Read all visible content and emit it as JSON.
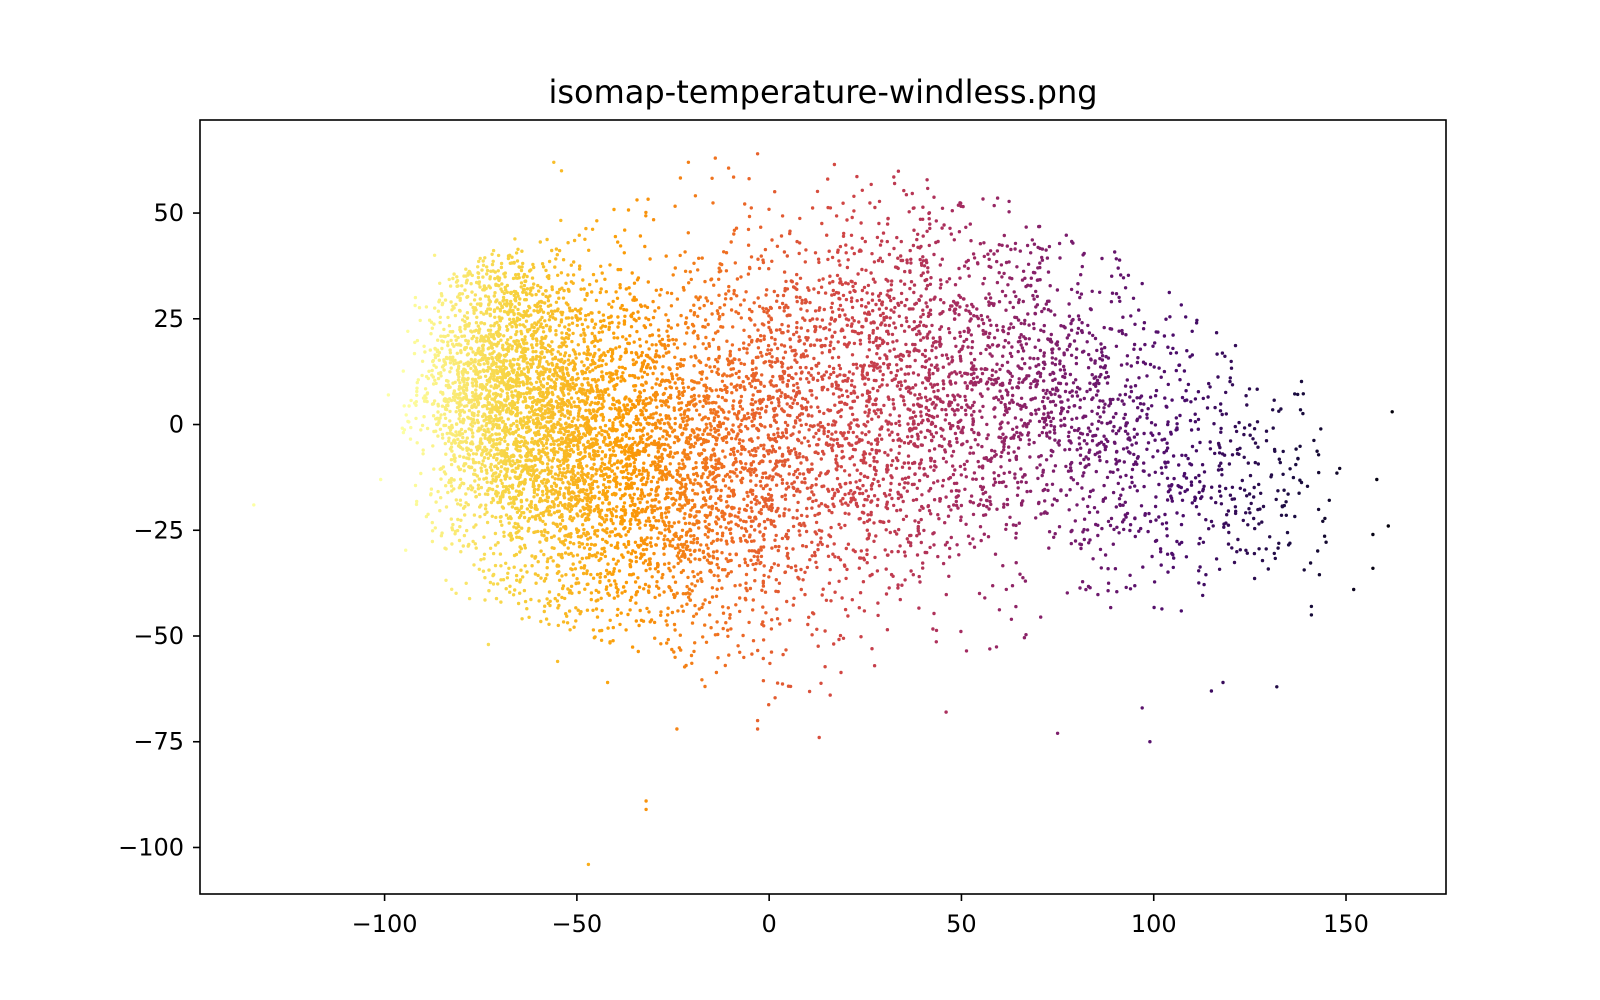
{
  "chart_data": {
    "type": "scatter",
    "title": "isomap-temperature-windless.png",
    "xlabel": "",
    "ylabel": "",
    "xlim": [
      -148,
      176
    ],
    "ylim": [
      -111,
      72
    ],
    "x_ticks": [
      {
        "value": -100,
        "label": "−100"
      },
      {
        "value": -50,
        "label": "−50"
      },
      {
        "value": 0,
        "label": "0"
      },
      {
        "value": 50,
        "label": "50"
      },
      {
        "value": 100,
        "label": "100"
      },
      {
        "value": 150,
        "label": "150"
      }
    ],
    "y_ticks": [
      {
        "value": 50,
        "label": "50"
      },
      {
        "value": 25,
        "label": "25"
      },
      {
        "value": 0,
        "label": "0"
      },
      {
        "value": -25,
        "label": "−25"
      },
      {
        "value": -50,
        "label": "−50"
      },
      {
        "value": -75,
        "label": "−75"
      },
      {
        "value": -100,
        "label": "−100"
      }
    ],
    "grid": false,
    "legend": "none",
    "colormap": "inferno",
    "color_by": "x",
    "colormap_stops": [
      "#000004",
      "#1b0c41",
      "#4a0c6b",
      "#781c6d",
      "#a52c60",
      "#cf4446",
      "#ed6925",
      "#fb9b06",
      "#f7d13d",
      "#fcffa4"
    ],
    "point_count": 9000,
    "outliers": [
      {
        "x": -134,
        "y": -19
      },
      {
        "x": -101,
        "y": -13
      },
      {
        "x": -99,
        "y": 7
      },
      {
        "x": -92,
        "y": 30
      },
      {
        "x": -87,
        "y": 40
      },
      {
        "x": -56,
        "y": 62
      },
      {
        "x": -54,
        "y": 60
      },
      {
        "x": -73,
        "y": -52
      },
      {
        "x": -55,
        "y": -56
      },
      {
        "x": -42,
        "y": -61
      },
      {
        "x": -32,
        "y": -89
      },
      {
        "x": -32,
        "y": -91
      },
      {
        "x": -47,
        "y": -104
      },
      {
        "x": -24,
        "y": -72
      },
      {
        "x": -3,
        "y": -70
      },
      {
        "x": -3,
        "y": -72
      },
      {
        "x": 13,
        "y": -74
      },
      {
        "x": 46,
        "y": -68
      },
      {
        "x": 75,
        "y": -73
      },
      {
        "x": 99,
        "y": -75
      },
      {
        "x": 97,
        "y": -67
      },
      {
        "x": 115,
        "y": -63
      },
      {
        "x": 118,
        "y": -61
      },
      {
        "x": 132,
        "y": -62
      },
      {
        "x": 141,
        "y": -43
      },
      {
        "x": 141,
        "y": -45
      },
      {
        "x": 152,
        "y": -39
      },
      {
        "x": 157,
        "y": -34
      },
      {
        "x": 157,
        "y": -26
      },
      {
        "x": 158,
        "y": -13
      },
      {
        "x": 161,
        "y": -24
      },
      {
        "x": 162,
        "y": 3
      },
      {
        "x": -3,
        "y": 64
      },
      {
        "x": -14,
        "y": 63
      },
      {
        "x": -21,
        "y": 62
      }
    ],
    "clusters": [
      {
        "cx": -75,
        "cy": 12,
        "sx": 8,
        "sy": 16,
        "n": 800
      },
      {
        "cx": -65,
        "cy": 5,
        "sx": 11,
        "sy": 20,
        "n": 1300
      },
      {
        "cx": -50,
        "cy": -5,
        "sx": 14,
        "sy": 20,
        "n": 1400
      },
      {
        "cx": -30,
        "cy": -12,
        "sx": 15,
        "sy": 20,
        "n": 1200
      },
      {
        "cx": -8,
        "cy": -8,
        "sx": 18,
        "sy": 24,
        "n": 1100
      },
      {
        "cx": 18,
        "cy": 5,
        "sx": 20,
        "sy": 24,
        "n": 1100
      },
      {
        "cx": 45,
        "cy": 12,
        "sx": 18,
        "sy": 22,
        "n": 900
      },
      {
        "cx": 72,
        "cy": 5,
        "sx": 16,
        "sy": 18,
        "n": 650
      },
      {
        "cx": 100,
        "cy": -5,
        "sx": 14,
        "sy": 17,
        "n": 380
      },
      {
        "cx": 125,
        "cy": -18,
        "sx": 12,
        "sy": 15,
        "n": 170
      }
    ]
  }
}
